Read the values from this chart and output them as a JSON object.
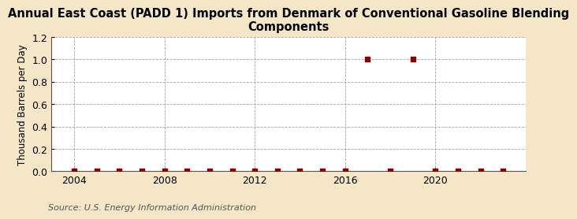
{
  "title": "Annual East Coast (PADD 1) Imports from Denmark of Conventional Gasoline Blending\nComponents",
  "ylabel": "Thousand Barrels per Day",
  "source": "Source: U.S. Energy Information Administration",
  "background_color": "#f5e6c8",
  "plot_bg_color": "#ffffff",
  "ylim": [
    0.0,
    1.2
  ],
  "yticks": [
    0.0,
    0.2,
    0.4,
    0.6,
    0.8,
    1.0,
    1.2
  ],
  "xlim": [
    2003.0,
    2024.0
  ],
  "xticks": [
    2004,
    2008,
    2012,
    2016,
    2020
  ],
  "data_years": [
    2004,
    2005,
    2006,
    2007,
    2008,
    2009,
    2010,
    2011,
    2012,
    2013,
    2014,
    2015,
    2016,
    2017,
    2018,
    2019,
    2020,
    2021,
    2022,
    2023
  ],
  "data_values": [
    0.0,
    0.0,
    0.0,
    0.0,
    0.0,
    0.0,
    0.0,
    0.0,
    0.0,
    0.0,
    0.0,
    0.0,
    0.0,
    1.0,
    0.0,
    1.0,
    0.0,
    0.0,
    0.0,
    0.0
  ],
  "marker_color": "#8b0000",
  "marker_size": 4,
  "grid_color": "#999999",
  "title_fontsize": 10.5,
  "label_fontsize": 8.5,
  "tick_fontsize": 9,
  "source_fontsize": 8
}
